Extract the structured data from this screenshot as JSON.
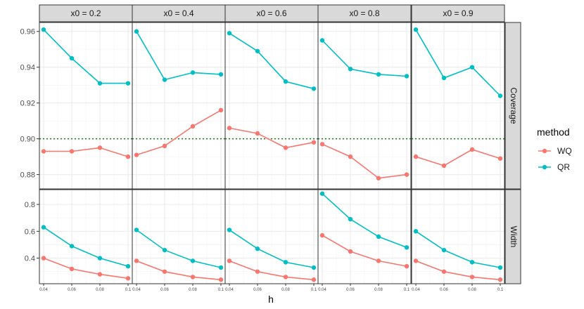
{
  "chart_data": {
    "type": "line",
    "facet_columns": [
      "x0 = 0.2",
      "x0 = 0.4",
      "x0 = 0.6",
      "x0 = 0.8",
      "x0 = 0.9"
    ],
    "facet_rows": [
      "Coverage",
      "Width"
    ],
    "x": [
      0.04,
      0.06,
      0.08,
      0.1
    ],
    "x_tick_labels": [
      "0.04",
      "0.06",
      "0.08",
      "0.1"
    ],
    "xlabel": "h",
    "legend": {
      "title": "method",
      "placement": "right",
      "entries": [
        "WQ",
        "QR"
      ]
    },
    "colors": {
      "WQ": "#F8766D",
      "QR": "#00BFC4",
      "reference_line": "#1a7a1a",
      "strip_bg": "#d9d9d9",
      "grid": "#ebebeb"
    },
    "rows": [
      {
        "name": "Coverage",
        "ylim": [
          0.872,
          0.965
        ],
        "yticks": [
          0.88,
          0.9,
          0.92,
          0.94,
          0.96
        ],
        "ytick_labels": [
          "0.88",
          "0.90",
          "0.92",
          "0.94",
          "0.96"
        ],
        "reference_line": 0.9,
        "panels": [
          {
            "WQ": [
              0.893,
              0.893,
              0.895,
              0.89
            ],
            "QR": [
              0.961,
              0.945,
              0.931,
              0.931
            ]
          },
          {
            "WQ": [
              0.891,
              0.896,
              0.907,
              0.916
            ],
            "QR": [
              0.96,
              0.933,
              0.937,
              0.936
            ]
          },
          {
            "WQ": [
              0.906,
              0.903,
              0.895,
              0.898
            ],
            "QR": [
              0.959,
              0.949,
              0.932,
              0.928
            ]
          },
          {
            "WQ": [
              0.897,
              0.89,
              0.878,
              0.88
            ],
            "QR": [
              0.955,
              0.939,
              0.936,
              0.935
            ]
          },
          {
            "WQ": [
              0.89,
              0.885,
              0.894,
              0.889
            ],
            "QR": [
              0.961,
              0.934,
              0.94,
              0.924
            ]
          }
        ]
      },
      {
        "name": "Width",
        "ylim": [
          0.21,
          0.91
        ],
        "yticks": [
          0.4,
          0.6,
          0.8
        ],
        "ytick_labels": [
          "0.4",
          "0.6",
          "0.8"
        ],
        "panels": [
          {
            "WQ": [
              0.4,
              0.32,
              0.28,
              0.25
            ],
            "QR": [
              0.63,
              0.49,
              0.4,
              0.34
            ]
          },
          {
            "WQ": [
              0.38,
              0.3,
              0.26,
              0.24
            ],
            "QR": [
              0.61,
              0.46,
              0.38,
              0.33
            ]
          },
          {
            "WQ": [
              0.38,
              0.3,
              0.26,
              0.24
            ],
            "QR": [
              0.61,
              0.47,
              0.37,
              0.33
            ]
          },
          {
            "WQ": [
              0.57,
              0.45,
              0.38,
              0.34
            ],
            "QR": [
              0.88,
              0.69,
              0.56,
              0.48
            ]
          },
          {
            "WQ": [
              0.38,
              0.3,
              0.26,
              0.24
            ],
            "QR": [
              0.6,
              0.46,
              0.37,
              0.33
            ]
          }
        ]
      }
    ]
  }
}
